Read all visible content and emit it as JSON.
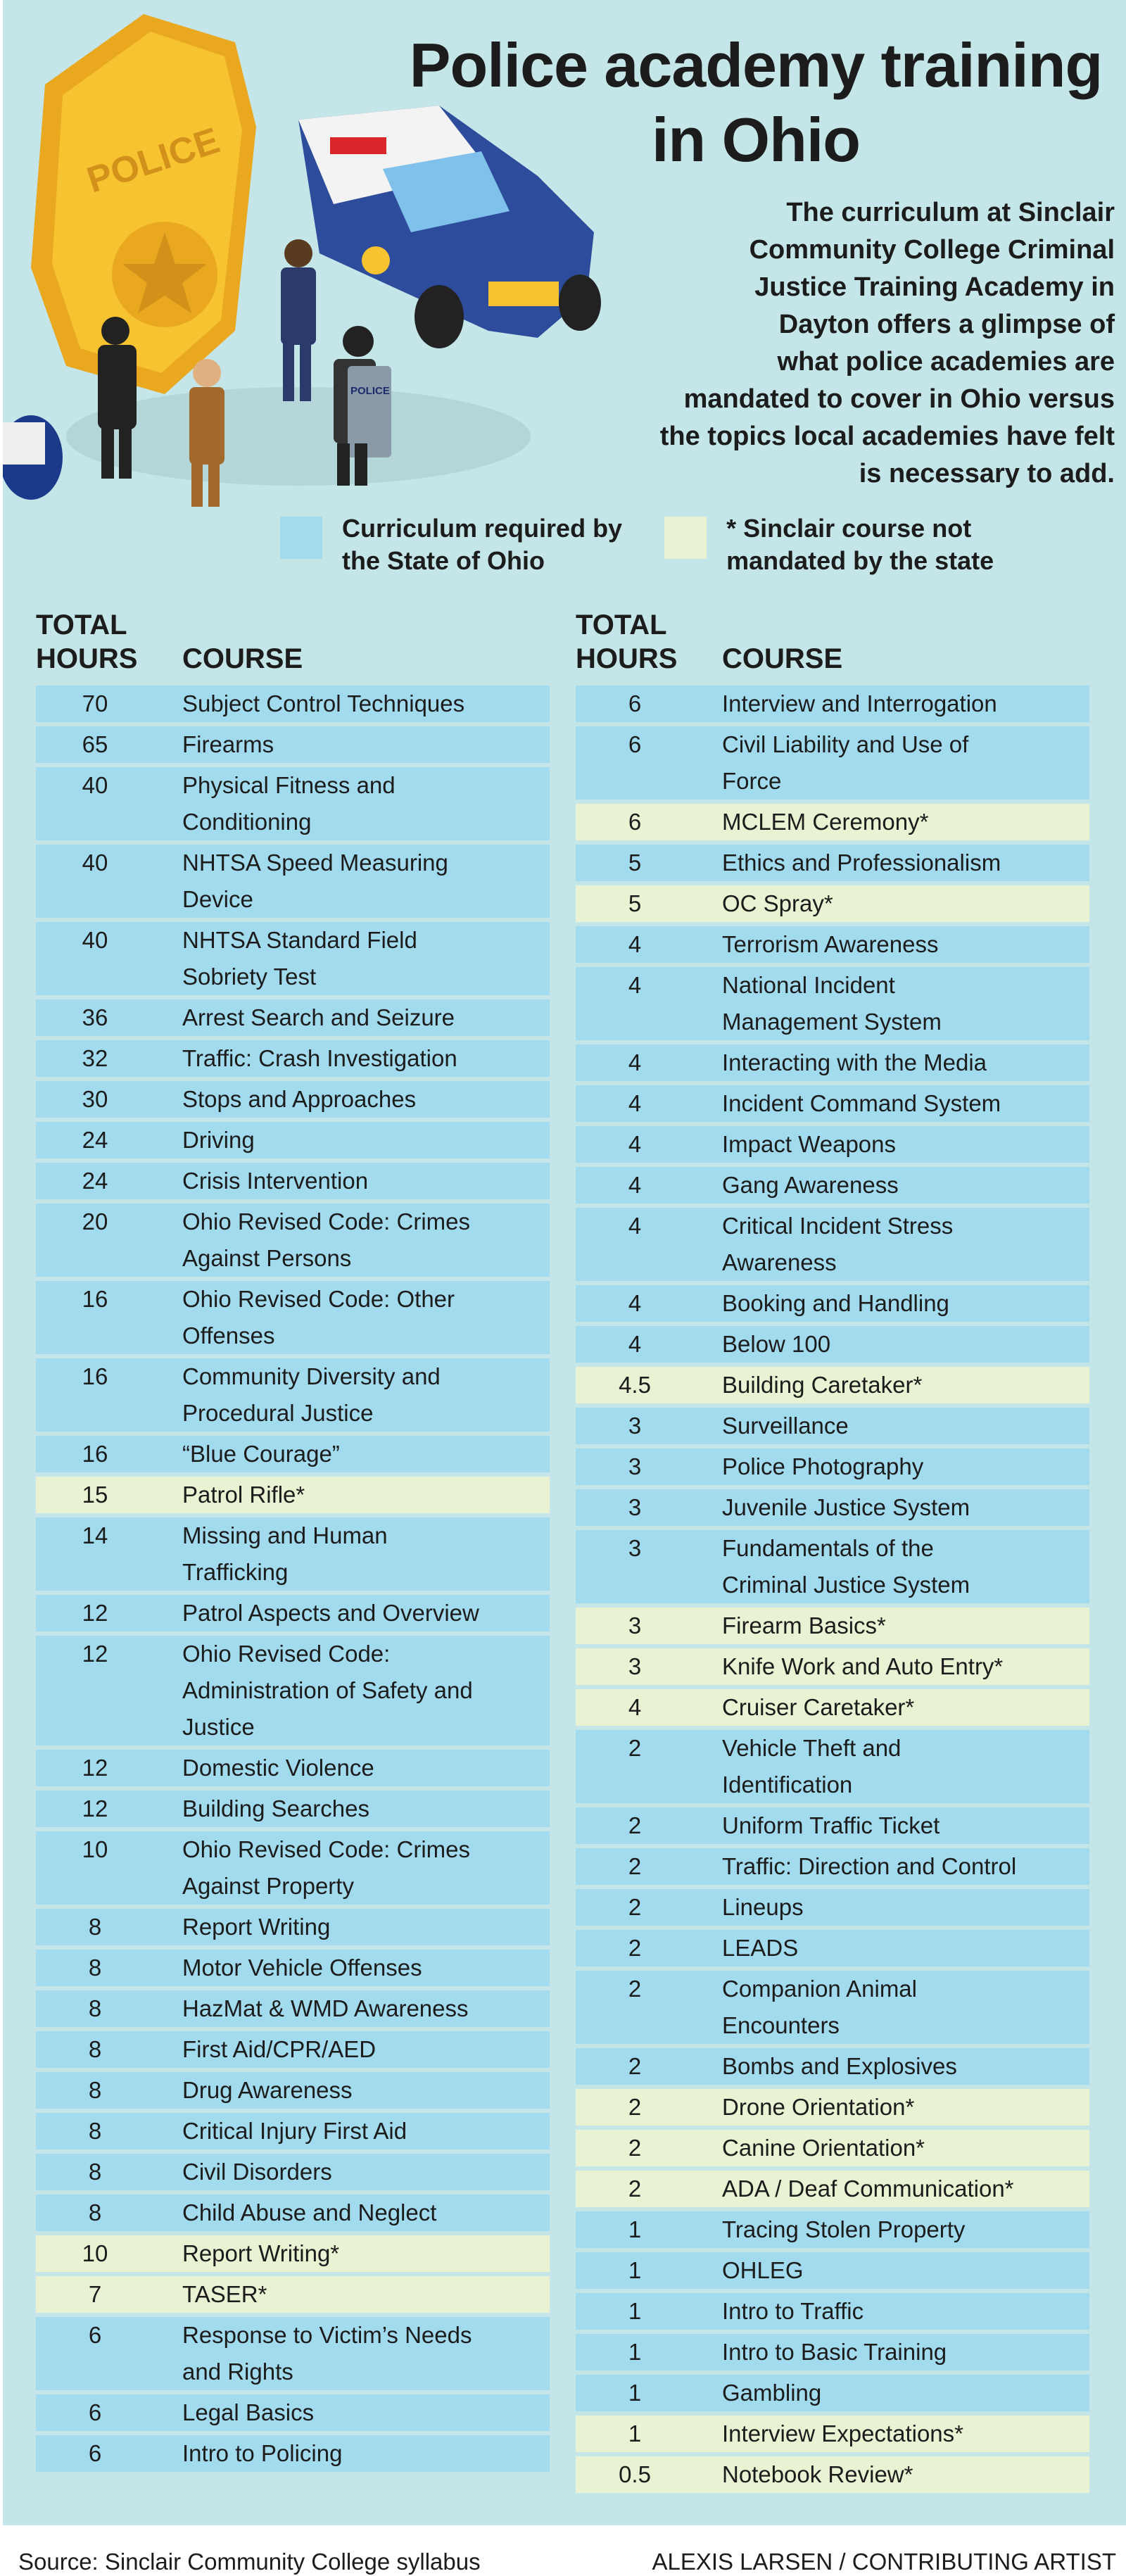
{
  "title": "Police academy training in Ohio",
  "intro": "The curriculum at Sinclair\nCommunity College Criminal\nJustice Training Academy in\nDayton offers a glimpse of\nwhat police academies are\nmandated to cover in Ohio versus\nthe topics local academies have felt\nis necessary to add.",
  "illustration": {
    "badge_text": "POLICE",
    "shield_text": "POLICE"
  },
  "legend": [
    {
      "label": "Curriculum required by\nthe State of Ohio",
      "color": "#a3dbee"
    },
    {
      "label": "* Sinclair course not\nmandated by the state",
      "color": "#e9f2d3"
    }
  ],
  "headers": {
    "hours": "TOTAL\nHOURS",
    "course": "COURSE"
  },
  "colors": {
    "background": "#c5e6e8",
    "state": "#a3dbee",
    "sinclair": "#e9f2d3"
  },
  "chart_data": {
    "type": "table",
    "columns": [
      "TOTAL HOURS",
      "COURSE"
    ],
    "left": [
      {
        "h": "70",
        "c": "Subject Control Techniques",
        "t": "state"
      },
      {
        "h": "65",
        "c": "Firearms",
        "t": "state"
      },
      {
        "h": "40",
        "c": "Physical Fitness and\nConditioning",
        "t": "state"
      },
      {
        "h": "40",
        "c": "NHTSA Speed Measuring\nDevice",
        "t": "state"
      },
      {
        "h": "40",
        "c": "NHTSA Standard Field\nSobriety Test",
        "t": "state"
      },
      {
        "h": "36",
        "c": "Arrest Search and Seizure",
        "t": "state"
      },
      {
        "h": "32",
        "c": "Traffic: Crash Investigation",
        "t": "state"
      },
      {
        "h": "30",
        "c": "Stops and Approaches",
        "t": "state"
      },
      {
        "h": "24",
        "c": "Driving",
        "t": "state"
      },
      {
        "h": "24",
        "c": "Crisis Intervention",
        "t": "state"
      },
      {
        "h": "20",
        "c": "Ohio Revised Code: Crimes\nAgainst Persons",
        "t": "state"
      },
      {
        "h": "16",
        "c": "Ohio Revised Code: Other\nOffenses",
        "t": "state"
      },
      {
        "h": "16",
        "c": "Community Diversity and\nProcedural Justice",
        "t": "state"
      },
      {
        "h": "16",
        "c": "“Blue Courage”",
        "t": "state"
      },
      {
        "h": "15",
        "c": "Patrol Rifle*",
        "t": "sinclair"
      },
      {
        "h": "14",
        "c": "Missing and Human\nTrafficking",
        "t": "state"
      },
      {
        "h": "12",
        "c": "Patrol Aspects and Overview",
        "t": "state"
      },
      {
        "h": "12",
        "c": "Ohio Revised Code:\nAdministration of Safety and\nJustice",
        "t": "state"
      },
      {
        "h": "12",
        "c": "Domestic Violence",
        "t": "state"
      },
      {
        "h": "12",
        "c": "Building Searches",
        "t": "state"
      },
      {
        "h": "10",
        "c": "Ohio Revised Code: Crimes\nAgainst Property",
        "t": "state"
      },
      {
        "h": "8",
        "c": "Report Writing",
        "t": "state"
      },
      {
        "h": "8",
        "c": "Motor Vehicle Offenses",
        "t": "state"
      },
      {
        "h": "8",
        "c": "HazMat & WMD Awareness",
        "t": "state"
      },
      {
        "h": "8",
        "c": "First Aid/CPR/AED",
        "t": "state"
      },
      {
        "h": "8",
        "c": "Drug Awareness",
        "t": "state"
      },
      {
        "h": "8",
        "c": "Critical Injury First Aid",
        "t": "state"
      },
      {
        "h": "8",
        "c": "Civil Disorders",
        "t": "state"
      },
      {
        "h": "8",
        "c": "Child Abuse and Neglect",
        "t": "state"
      },
      {
        "h": "10",
        "c": "Report Writing*",
        "t": "sinclair"
      },
      {
        "h": "7",
        "c": "TASER*",
        "t": "sinclair"
      },
      {
        "h": "6",
        "c": "Response to Victim’s Needs\nand Rights",
        "t": "state"
      },
      {
        "h": "6",
        "c": "Legal Basics",
        "t": "state"
      },
      {
        "h": "6",
        "c": "Intro to Policing",
        "t": "state"
      }
    ],
    "right": [
      {
        "h": "6",
        "c": "Interview and Interrogation",
        "t": "state"
      },
      {
        "h": "6",
        "c": "Civil Liability and Use of\nForce",
        "t": "state"
      },
      {
        "h": "6",
        "c": "MCLEM Ceremony*",
        "t": "sinclair"
      },
      {
        "h": "5",
        "c": "Ethics and Professionalism",
        "t": "state"
      },
      {
        "h": "5",
        "c": "OC Spray*",
        "t": "sinclair"
      },
      {
        "h": "4",
        "c": "Terrorism Awareness",
        "t": "state"
      },
      {
        "h": "4",
        "c": "National Incident\nManagement System",
        "t": "state"
      },
      {
        "h": "4",
        "c": "Interacting with the Media",
        "t": "state"
      },
      {
        "h": "4",
        "c": "Incident Command System",
        "t": "state"
      },
      {
        "h": "4",
        "c": "Impact Weapons",
        "t": "state"
      },
      {
        "h": "4",
        "c": "Gang Awareness",
        "t": "state"
      },
      {
        "h": "4",
        "c": "Critical Incident Stress\nAwareness",
        "t": "state"
      },
      {
        "h": "4",
        "c": "Booking and Handling",
        "t": "state"
      },
      {
        "h": "4",
        "c": "Below 100",
        "t": "state"
      },
      {
        "h": "4.5",
        "c": "Building Caretaker*",
        "t": "sinclair"
      },
      {
        "h": "3",
        "c": "Surveillance",
        "t": "state"
      },
      {
        "h": "3",
        "c": "Police Photography",
        "t": "state"
      },
      {
        "h": "3",
        "c": "Juvenile Justice System",
        "t": "state"
      },
      {
        "h": "3",
        "c": "Fundamentals of the\nCriminal Justice System",
        "t": "state"
      },
      {
        "h": "3",
        "c": "Firearm Basics*",
        "t": "sinclair"
      },
      {
        "h": "3",
        "c": "Knife Work and Auto Entry*",
        "t": "sinclair"
      },
      {
        "h": "4",
        "c": "Cruiser Caretaker*",
        "t": "sinclair"
      },
      {
        "h": "2",
        "c": "Vehicle Theft and\nIdentification",
        "t": "state"
      },
      {
        "h": "2",
        "c": "Uniform Traffic Ticket",
        "t": "state"
      },
      {
        "h": "2",
        "c": "Traffic: Direction and Control",
        "t": "state"
      },
      {
        "h": "2",
        "c": "Lineups",
        "t": "state"
      },
      {
        "h": "2",
        "c": "LEADS",
        "t": "state"
      },
      {
        "h": "2",
        "c": "Companion Animal\nEncounters",
        "t": "state"
      },
      {
        "h": "2",
        "c": "Bombs and Explosives",
        "t": "state"
      },
      {
        "h": "2",
        "c": "Drone Orientation*",
        "t": "sinclair"
      },
      {
        "h": "2",
        "c": "Canine Orientation*",
        "t": "sinclair"
      },
      {
        "h": "2",
        "c": "ADA / Deaf Communication*",
        "t": "sinclair"
      },
      {
        "h": "1",
        "c": "Tracing Stolen Property",
        "t": "state"
      },
      {
        "h": "1",
        "c": "OHLEG",
        "t": "state"
      },
      {
        "h": "1",
        "c": "Intro to Traffic",
        "t": "state"
      },
      {
        "h": "1",
        "c": "Intro to Basic Training",
        "t": "state"
      },
      {
        "h": "1",
        "c": "Gambling",
        "t": "state"
      },
      {
        "h": "1",
        "c": "Interview Expectations*",
        "t": "sinclair"
      },
      {
        "h": "0.5",
        "c": "Notebook Review*",
        "t": "sinclair"
      }
    ]
  },
  "footer": {
    "source": "Source: Sinclair Community College syllabus",
    "credit": "ALEXIS LARSEN / CONTRIBUTING ARTIST"
  }
}
